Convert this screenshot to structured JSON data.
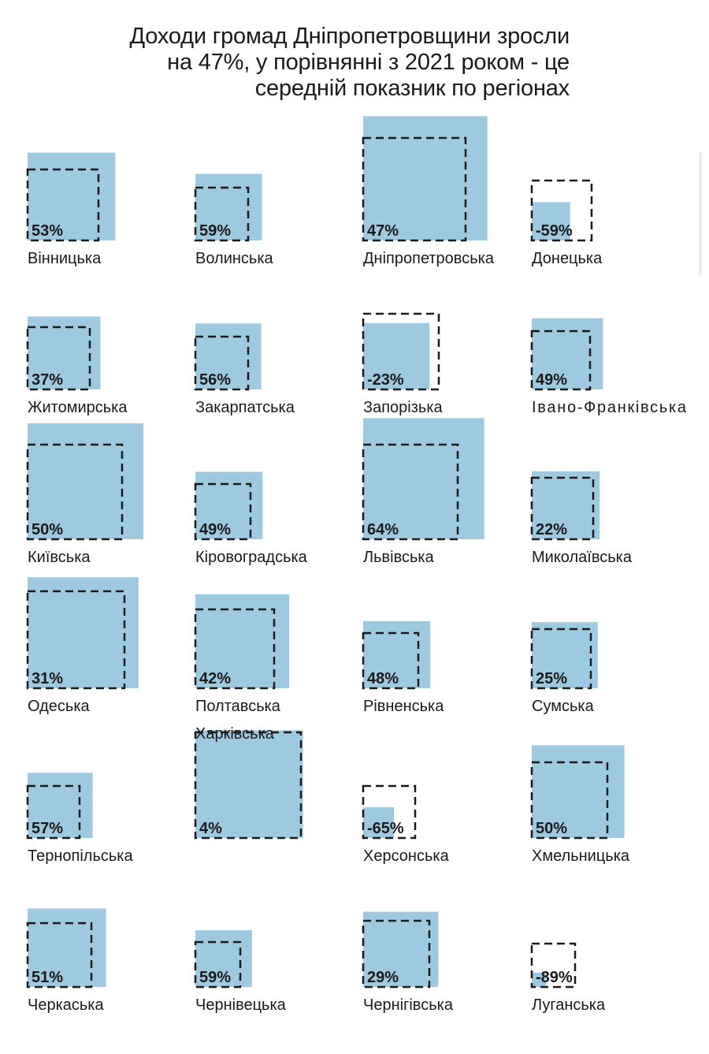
{
  "chart_data": {
    "type": "area",
    "title": [
      "Доходи громад Дніпропетровщини зросли",
      "на 47%, у порівнянні з 2021 роком - це",
      "середній показник по регіонах"
    ],
    "colors": {
      "fill": "#9ecae1",
      "outline": "#1a1a1a",
      "text": "#1a1a1a"
    },
    "regions": [
      {
        "name": "Вінницька",
        "change": "53%",
        "value": 53
      },
      {
        "name": "Волинська",
        "change": "59%",
        "value": 59
      },
      {
        "name": "Дніпропетровська",
        "change": "47%",
        "value": 47
      },
      {
        "name": "Донецька",
        "change": "-59%",
        "value": -59
      },
      {
        "name": "Житомирська",
        "change": "37%",
        "value": 37
      },
      {
        "name": "Закарпатська",
        "change": "56%",
        "value": 56
      },
      {
        "name": "Запорізька",
        "change": "-23%",
        "value": -23
      },
      {
        "name": "Івано-Франківська",
        "change": "49%",
        "value": 49
      },
      {
        "name": "Київська",
        "change": "50%",
        "value": 50
      },
      {
        "name": "Кіровоградська",
        "change": "49%",
        "value": 49
      },
      {
        "name": "Львівська",
        "change": "64%",
        "value": 64
      },
      {
        "name": "Миколаївська",
        "change": "22%",
        "value": 22
      },
      {
        "name": "Одеська",
        "change": "31%",
        "value": 31
      },
      {
        "name": "Полтавська",
        "change": "42%",
        "value": 42
      },
      {
        "name": "Рівненська",
        "change": "48%",
        "value": 48
      },
      {
        "name": "Сумська",
        "change": "25%",
        "value": 25
      },
      {
        "name": "Тернопільська",
        "change": "57%",
        "value": 57
      },
      {
        "name": "Харківська",
        "change": "4%",
        "value": 4
      },
      {
        "name": "Херсонська",
        "change": "-65%",
        "value": -65
      },
      {
        "name": "Хмельницька",
        "change": "50%",
        "value": 50
      },
      {
        "name": "Черкаська",
        "change": "51%",
        "value": 51
      },
      {
        "name": "Чернівецька",
        "change": "59%",
        "value": 59
      },
      {
        "name": "Чернігівська",
        "change": "29%",
        "value": 29
      },
      {
        "name": "Луганська",
        "change": "-89%",
        "value": -89
      }
    ]
  }
}
